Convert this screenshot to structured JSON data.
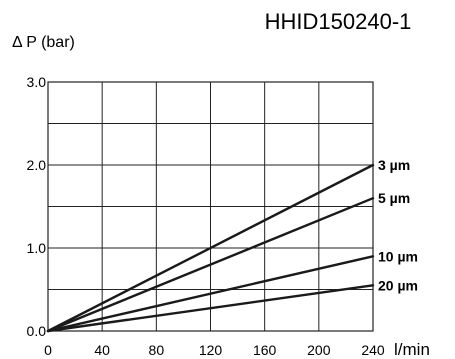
{
  "chart_data": {
    "type": "line",
    "title": "HHID150240-1",
    "ylabel": "Δ P (bar)",
    "xlabel": "",
    "x_unit_label": "l/min",
    "xlim": [
      0,
      240
    ],
    "ylim": [
      0,
      3.0
    ],
    "x_ticks": [
      0,
      40,
      80,
      120,
      160,
      200,
      240
    ],
    "x_tick_labels": [
      "0",
      "40",
      "80",
      "120",
      "160",
      "200",
      "240"
    ],
    "y_ticks": [
      0,
      1.0,
      2.0,
      3.0
    ],
    "y_tick_labels": [
      "0.0",
      "1.0",
      "2.0",
      "3.0"
    ],
    "y_minor_gridlines": [
      0.5,
      1.5,
      2.5
    ],
    "grid": true,
    "legend": "labels at line ends",
    "series": [
      {
        "name": "3 µm",
        "x": [
          0,
          240
        ],
        "y": [
          0,
          2.0
        ]
      },
      {
        "name": "5 µm",
        "x": [
          0,
          240
        ],
        "y": [
          0,
          1.6
        ]
      },
      {
        "name": "10 µm",
        "x": [
          0,
          240
        ],
        "y": [
          0,
          0.9
        ]
      },
      {
        "name": "20 µm",
        "x": [
          0,
          240
        ],
        "y": [
          0,
          0.55
        ]
      }
    ],
    "colors": {
      "line": "#1a1a1a",
      "grid": "#222222",
      "text": "#111111"
    }
  }
}
